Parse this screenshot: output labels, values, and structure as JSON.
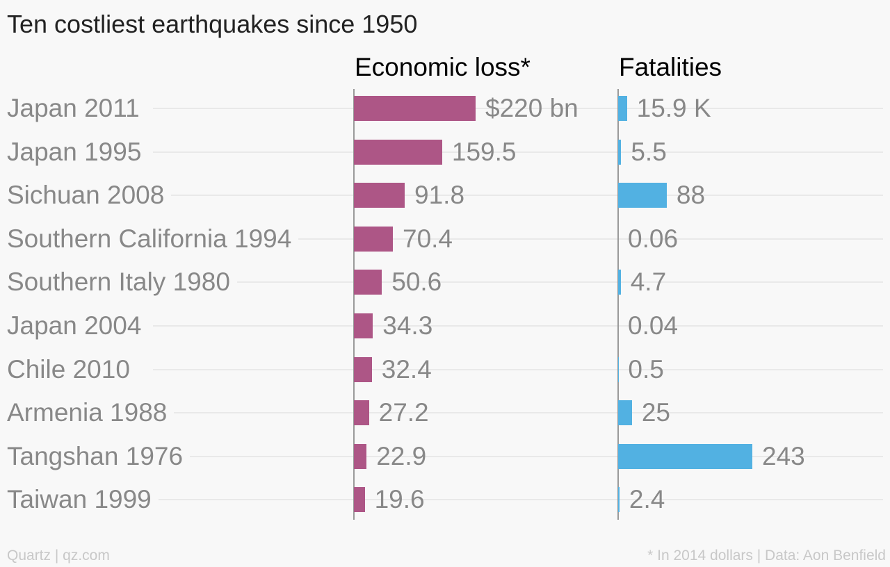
{
  "chart_data": {
    "type": "bar",
    "orientation": "horizontal",
    "title": "Ten costliest earthquakes since 1950",
    "categories": [
      "Japan 2011",
      "Japan 1995",
      "Sichuan 2008",
      "Southern California 1994",
      "Southern Italy 1980",
      "Japan 2004",
      "Chile 2010",
      "Armenia 1988",
      "Tangshan 1976",
      "Taiwan 1999"
    ],
    "series": [
      {
        "name": "Economic loss*",
        "color": "#ad5686",
        "values": [
          220,
          159.5,
          91.8,
          70.4,
          50.6,
          34.3,
          32.4,
          27.2,
          22.9,
          19.6
        ],
        "labels": [
          "$220 bn",
          "159.5",
          "91.8",
          "70.4",
          "50.6",
          "34.3",
          "32.4",
          "27.2",
          "22.9",
          "19.6"
        ],
        "xlim": [
          0,
          220
        ]
      },
      {
        "name": "Fatalities",
        "color": "#52b1e2",
        "values": [
          15.9,
          5.5,
          88,
          0.06,
          4.7,
          0.04,
          0.5,
          25,
          243,
          2.4
        ],
        "labels": [
          "15.9 K",
          "5.5",
          "88",
          "0.06",
          "4.7",
          "0.04",
          "0.5",
          "25",
          "243",
          "2.4"
        ],
        "xlim": [
          0,
          243
        ]
      }
    ],
    "grid": true,
    "legend": "none"
  },
  "footer": {
    "source_left": "Quartz | qz.com",
    "note_right": "* In 2014 dollars | Data: Aon Benfield"
  }
}
